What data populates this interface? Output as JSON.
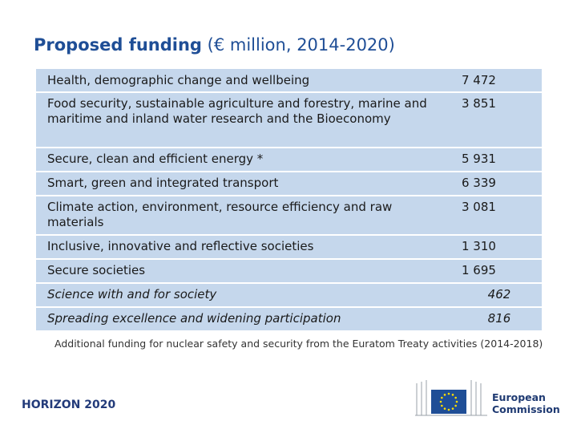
{
  "title": {
    "bold": "Proposed funding",
    "normal": " (€ million, 2014-2020)"
  },
  "rows": [
    {
      "label": "Health, demographic change and wellbeing",
      "value": "7 472"
    },
    {
      "label": "Food security, sustainable agriculture and forestry, marine and maritime and inland water research and the Bioeconomy",
      "value": "3 851"
    },
    {
      "label": "Secure, clean and efficient energy *",
      "value": "5 931"
    },
    {
      "label": "Smart, green and integrated transport",
      "value": "6 339"
    },
    {
      "label": "Climate action, environment, resource efficiency  and raw materials",
      "value": "3 081"
    },
    {
      "label": "Inclusive, innovative and reflective societies",
      "value": "1 310"
    },
    {
      "label": "Secure societies",
      "value": "1 695"
    },
    {
      "label": "Science with and for society",
      "value": "462"
    },
    {
      "label": "Spreading excellence and widening participation",
      "value": "816"
    }
  ],
  "note": "Additional funding for nuclear safety and security from the Euratom Treaty activities (2014-2018)",
  "footer": {
    "program": "HORIZON 2020",
    "org_line1": "European",
    "org_line2": "Commission"
  },
  "colors": {
    "title": "#1f4e96",
    "table_bg": "#c5d7ec",
    "eu_blue": "#1f4e96",
    "eu_star": "#ffdd00"
  },
  "icons": {
    "ec_logo": "european-commission-logo-icon"
  }
}
